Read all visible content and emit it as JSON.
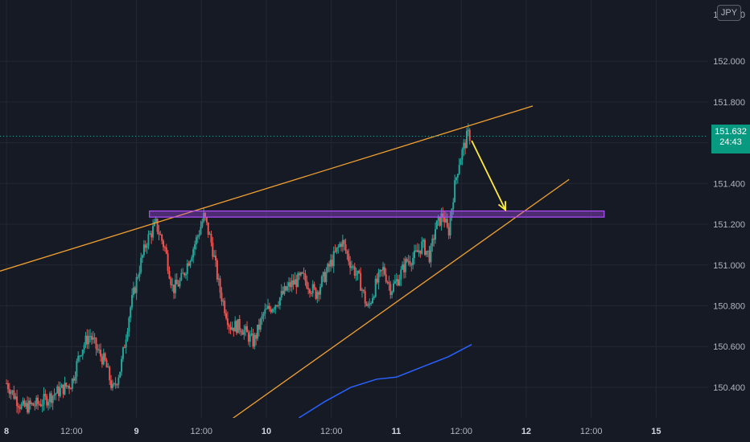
{
  "chart_data": {
    "type": "candlestick",
    "instrument_currency": "JPY",
    "currency_badge": "JPY",
    "top_axis_label_fragment": "152.200",
    "last_price_label": "151.632",
    "countdown": "24:43",
    "last_price": 151.632,
    "y_ticks": [
      "152.000",
      "151.800",
      "151.600",
      "151.400",
      "151.200",
      "151.000",
      "150.800",
      "150.600",
      "150.400"
    ],
    "y_tick_values": [
      152.0,
      151.8,
      151.6,
      151.4,
      151.2,
      151.0,
      150.8,
      150.6,
      150.4
    ],
    "x_ticks": [
      {
        "label": "8",
        "t": 0,
        "bold": true
      },
      {
        "label": "12:00",
        "t": 0.5,
        "bold": false
      },
      {
        "label": "9",
        "t": 1,
        "bold": true
      },
      {
        "label": "12:00",
        "t": 1.5,
        "bold": false
      },
      {
        "label": "10",
        "t": 2,
        "bold": true
      },
      {
        "label": "12:00",
        "t": 2.5,
        "bold": false
      },
      {
        "label": "11",
        "t": 3,
        "bold": true
      },
      {
        "label": "12:00",
        "t": 3.5,
        "bold": false
      },
      {
        "label": "12",
        "t": 4,
        "bold": true
      },
      {
        "label": "12:00",
        "t": 4.5,
        "bold": false
      },
      {
        "label": "15",
        "t": 5,
        "bold": true
      }
    ],
    "ylim": [
      150.25,
      152.3
    ],
    "xlim": [
      -0.05,
      5.4
    ],
    "candle_path": [
      [
        0,
        150.42
      ],
      [
        0.12,
        150.3
      ],
      [
        0.25,
        150.32
      ],
      [
        0.4,
        150.38
      ],
      [
        0.5,
        150.42
      ],
      [
        0.57,
        150.58
      ],
      [
        0.64,
        150.66
      ],
      [
        0.7,
        150.58
      ],
      [
        0.76,
        150.52
      ],
      [
        0.82,
        150.38
      ],
      [
        0.88,
        150.5
      ],
      [
        0.95,
        150.78
      ],
      [
        1.02,
        150.98
      ],
      [
        1.08,
        151.12
      ],
      [
        1.15,
        151.2
      ],
      [
        1.22,
        151.08
      ],
      [
        1.28,
        150.88
      ],
      [
        1.34,
        150.92
      ],
      [
        1.4,
        151.02
      ],
      [
        1.47,
        151.14
      ],
      [
        1.52,
        151.24
      ],
      [
        1.58,
        151.1
      ],
      [
        1.64,
        150.88
      ],
      [
        1.72,
        150.7
      ],
      [
        1.8,
        150.7
      ],
      [
        1.9,
        150.62
      ],
      [
        1.98,
        150.76
      ],
      [
        2.08,
        150.82
      ],
      [
        2.18,
        150.9
      ],
      [
        2.28,
        150.94
      ],
      [
        2.38,
        150.86
      ],
      [
        2.46,
        150.96
      ],
      [
        2.52,
        151.04
      ],
      [
        2.58,
        151.12
      ],
      [
        2.64,
        151.02
      ],
      [
        2.72,
        150.92
      ],
      [
        2.78,
        150.78
      ],
      [
        2.84,
        150.9
      ],
      [
        2.9,
        150.98
      ],
      [
        2.96,
        150.88
      ],
      [
        3.02,
        150.94
      ],
      [
        3.08,
        151.02
      ],
      [
        3.14,
        151.04
      ],
      [
        3.2,
        151.1
      ],
      [
        3.26,
        151.04
      ],
      [
        3.3,
        151.18
      ],
      [
        3.36,
        151.25
      ],
      [
        3.4,
        151.15
      ],
      [
        3.44,
        151.35
      ],
      [
        3.48,
        151.5
      ],
      [
        3.52,
        151.58
      ],
      [
        3.55,
        151.64
      ],
      [
        3.57,
        151.632
      ]
    ],
    "moving_average": {
      "color": "#2962ff",
      "points": [
        [
          2.25,
          150.25
        ],
        [
          2.45,
          150.33
        ],
        [
          2.65,
          150.4
        ],
        [
          2.85,
          150.44
        ],
        [
          3.0,
          150.45
        ],
        [
          3.2,
          150.5
        ],
        [
          3.4,
          150.55
        ],
        [
          3.58,
          150.61
        ]
      ]
    },
    "annotations": {
      "upper_trendline": {
        "color": "#f0a030",
        "from": [
          -0.05,
          150.97
        ],
        "to": [
          4.05,
          151.78
        ]
      },
      "lower_trendline": {
        "color": "#f0a030",
        "from": [
          1.68,
          150.22
        ],
        "to": [
          4.33,
          151.42
        ]
      },
      "resistance_zone": {
        "color": "#b14cff",
        "x0": 1.1,
        "x1": 4.6,
        "y0": 151.235,
        "y1": 151.265
      },
      "projection_arrow": {
        "color": "#ffeb3b",
        "from": [
          3.58,
          151.61
        ],
        "to": [
          3.84,
          151.27
        ]
      }
    }
  }
}
